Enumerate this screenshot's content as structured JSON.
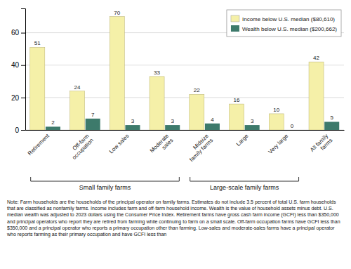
{
  "chart_data": {
    "type": "bar",
    "categories": [
      "Retirement",
      "Off-farm\noccupation",
      "Low sales",
      "Moderate\nsales",
      "Midsize\nfamily farms",
      "Large",
      "Very large",
      "All family\nfarms"
    ],
    "series": [
      {
        "name": "Income below U.S. median ($80,610)",
        "color": "#f5f0a8",
        "values": [
          51,
          24,
          70,
          33,
          22,
          16,
          10,
          42
        ]
      },
      {
        "name": "Wealth below U.S. median ($200,662)",
        "color": "#3d7a6b",
        "values": [
          2,
          7,
          3,
          3,
          4,
          3,
          0,
          5
        ]
      }
    ],
    "ylim": [
      0,
      75
    ],
    "yticks": [
      0,
      20,
      40,
      60
    ],
    "grid": true,
    "legend": "upper right",
    "data_labels": true,
    "groups": [
      {
        "name": "Small family farms",
        "from": "Retirement",
        "to": "Moderate\nsales"
      },
      {
        "name": "Large-scale family farms",
        "from": "Midsize\nfamily farms",
        "to": "Very large"
      }
    ],
    "note": "Note: Farm households are the households of the principal operator on family farms. Estimates do not include 3.5 percent of total U.S. farm households that are classified as nonfamily farms. Income includes farm and off-farm household income. Wealth is the value of household assets minus debt. U.S. median wealth was adjusted to 2023 dollars using the Consumer Price Index. Retirement farms have gross cash farm income (GCFI) less than $350,000 and principal operators who report they are retired from farming while continuing to farm on a small scale. Off-farm occupation farms have GCFI less than $350,000 and a principal operator who reports a primary occupation other than farming. Low-sales and moderate-sales farms have a principal operator who reports farming as their primary occupation and have GCFI less than"
  }
}
